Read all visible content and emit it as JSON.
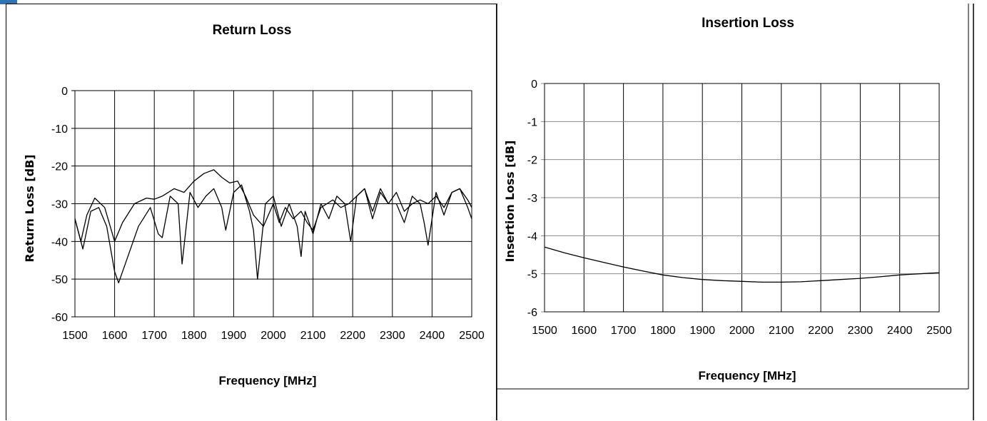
{
  "chart_data": [
    {
      "type": "line",
      "title": "Return Loss",
      "xlabel": "Frequency [MHz]",
      "ylabel": "Return Loss [dB]",
      "xlim": [
        1500,
        2500
      ],
      "ylim": [
        -60,
        0
      ],
      "x_ticks": [
        "1500",
        "1600",
        "1700",
        "1800",
        "1900",
        "2000",
        "2100",
        "2200",
        "2300",
        "2400",
        "2500"
      ],
      "y_ticks": [
        "0",
        "-10",
        "-20",
        "-30",
        "-40",
        "-50",
        "-60"
      ],
      "grid": true,
      "series": [
        {
          "x": [
            1500,
            1515,
            1530,
            1550,
            1575,
            1600,
            1620,
            1650,
            1680,
            1700,
            1720,
            1750,
            1775,
            1800,
            1825,
            1850,
            1870,
            1890,
            1910,
            1930,
            1950,
            1975,
            2000,
            2015,
            2030,
            2050,
            2070,
            2085,
            2100,
            2120,
            2150,
            2170,
            2190,
            2210,
            2230,
            2250,
            2270,
            2290,
            2310,
            2330,
            2350,
            2370,
            2390,
            2410,
            2430,
            2450,
            2470,
            2490,
            2500
          ],
          "values": [
            -34,
            -40,
            -33,
            -28.5,
            -31,
            -40,
            -35,
            -30,
            -28.5,
            -28.8,
            -28,
            -26,
            -27,
            -24,
            -22,
            -21,
            -23,
            -24.5,
            -24,
            -28,
            -33,
            -36,
            -30,
            -35,
            -31,
            -34,
            -32,
            -35,
            -37,
            -31,
            -29,
            -31,
            -30,
            -28,
            -26,
            -32,
            -26,
            -30,
            -27,
            -32,
            -30,
            -29,
            -30,
            -28,
            -31,
            -27,
            -26,
            -29,
            -31
          ]
        },
        {
          "x": [
            1500,
            1520,
            1540,
            1560,
            1580,
            1600,
            1610,
            1630,
            1660,
            1690,
            1710,
            1720,
            1740,
            1760,
            1770,
            1790,
            1810,
            1830,
            1850,
            1870,
            1880,
            1900,
            1920,
            1940,
            1950,
            1960,
            1980,
            2000,
            2020,
            2040,
            2060,
            2070,
            2080,
            2100,
            2120,
            2140,
            2160,
            2180,
            2195,
            2210,
            2230,
            2250,
            2270,
            2290,
            2310,
            2330,
            2350,
            2370,
            2380,
            2390,
            2410,
            2430,
            2450,
            2470,
            2490,
            2500
          ],
          "values": [
            -34,
            -42,
            -32,
            -31,
            -36,
            -48,
            -51,
            -45,
            -36,
            -31,
            -38,
            -39,
            -28,
            -30,
            -46,
            -27,
            -31,
            -28,
            -26,
            -31,
            -37,
            -27,
            -25,
            -32,
            -37,
            -50,
            -30,
            -28,
            -36,
            -30,
            -36,
            -44,
            -32,
            -38,
            -30,
            -34,
            -28,
            -30,
            -40,
            -28,
            -26,
            -34,
            -27,
            -30,
            -30,
            -35,
            -28,
            -30,
            -35,
            -41,
            -27,
            -33,
            -27,
            -26,
            -31,
            -34
          ]
        }
      ]
    },
    {
      "type": "line",
      "title": "Insertion Loss",
      "xlabel": "Frequency [MHz]",
      "ylabel": "Insertion Loss [dB]",
      "xlim": [
        1500,
        2500
      ],
      "ylim": [
        -6,
        0
      ],
      "x_ticks": [
        "1500",
        "1600",
        "1700",
        "1800",
        "1900",
        "2000",
        "2100",
        "2200",
        "2300",
        "2400",
        "2500"
      ],
      "y_ticks": [
        "0",
        "-1",
        "-2",
        "-3",
        "-4",
        "-5",
        "-6"
      ],
      "grid": true,
      "series": [
        {
          "x": [
            1500,
            1550,
            1600,
            1650,
            1700,
            1750,
            1800,
            1850,
            1900,
            1950,
            2000,
            2050,
            2100,
            2150,
            2200,
            2250,
            2300,
            2350,
            2400,
            2450,
            2500
          ],
          "values": [
            -4.3,
            -4.45,
            -4.58,
            -4.7,
            -4.82,
            -4.93,
            -5.03,
            -5.1,
            -5.15,
            -5.18,
            -5.2,
            -5.22,
            -5.22,
            -5.21,
            -5.18,
            -5.15,
            -5.12,
            -5.08,
            -5.03,
            -5.0,
            -4.97
          ]
        }
      ]
    }
  ]
}
